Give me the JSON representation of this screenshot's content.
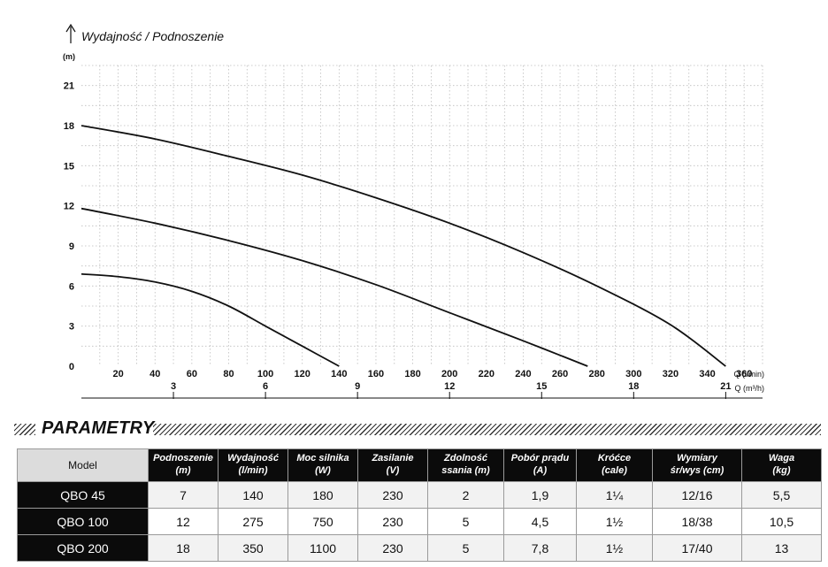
{
  "chart_data": {
    "type": "line",
    "y_axis_title": "Wydajność / Podnoszenie",
    "y_unit_label": "(m)",
    "y_ticks": [
      0,
      3,
      6,
      9,
      12,
      15,
      18,
      21
    ],
    "ylim": [
      0,
      22.5
    ],
    "x_primary": {
      "unit_label": "Q (l/min)",
      "ticks": [
        20,
        40,
        60,
        80,
        100,
        120,
        140,
        160,
        180,
        200,
        220,
        240,
        260,
        280,
        300,
        320,
        340,
        360
      ],
      "range": [
        0,
        370
      ]
    },
    "x_secondary": {
      "unit_label": "Q (m³/h)",
      "ticks": [
        3,
        6,
        9,
        12,
        15,
        18,
        21
      ]
    },
    "grid": true,
    "series": [
      {
        "name": "QBO 45",
        "x": [
          0,
          20,
          40,
          60,
          80,
          100,
          120,
          140
        ],
        "y": [
          6.9,
          6.7,
          6.3,
          5.6,
          4.5,
          3.0,
          1.5,
          0
        ]
      },
      {
        "name": "QBO 100",
        "x": [
          0,
          40,
          80,
          120,
          160,
          200,
          240,
          275
        ],
        "y": [
          11.8,
          10.7,
          9.4,
          7.9,
          6.1,
          4.0,
          1.9,
          0
        ]
      },
      {
        "name": "QBO 200",
        "x": [
          0,
          40,
          80,
          120,
          160,
          200,
          240,
          280,
          320,
          350
        ],
        "y": [
          18.0,
          17.0,
          15.7,
          14.3,
          12.6,
          10.7,
          8.5,
          6.0,
          3.1,
          0
        ]
      }
    ]
  },
  "section_title": "PARAMETRY",
  "table": {
    "header": {
      "model": "Model",
      "columns": [
        "Podnoszenie\n(m)",
        "Wydajność\n(l/min)",
        "Moc silnika\n(W)",
        "Zasilanie\n(V)",
        "Zdolność\nssania (m)",
        "Pobór prądu\n(A)",
        "Króćce\n(cale)",
        "Wymiary\nśr/wys (cm)",
        "Waga\n(kg)"
      ]
    },
    "rows": [
      {
        "model": "QBO 45",
        "values": [
          "7",
          "140",
          "180",
          "230",
          "2",
          "1,9",
          "1¼",
          "12/16",
          "5,5"
        ]
      },
      {
        "model": "QBO 100",
        "values": [
          "12",
          "275",
          "750",
          "230",
          "5",
          "4,5",
          "1½",
          "18/38",
          "10,5"
        ]
      },
      {
        "model": "QBO 200",
        "values": [
          "18",
          "350",
          "1100",
          "230",
          "5",
          "7,8",
          "1½",
          "17/40",
          "13"
        ]
      }
    ]
  }
}
